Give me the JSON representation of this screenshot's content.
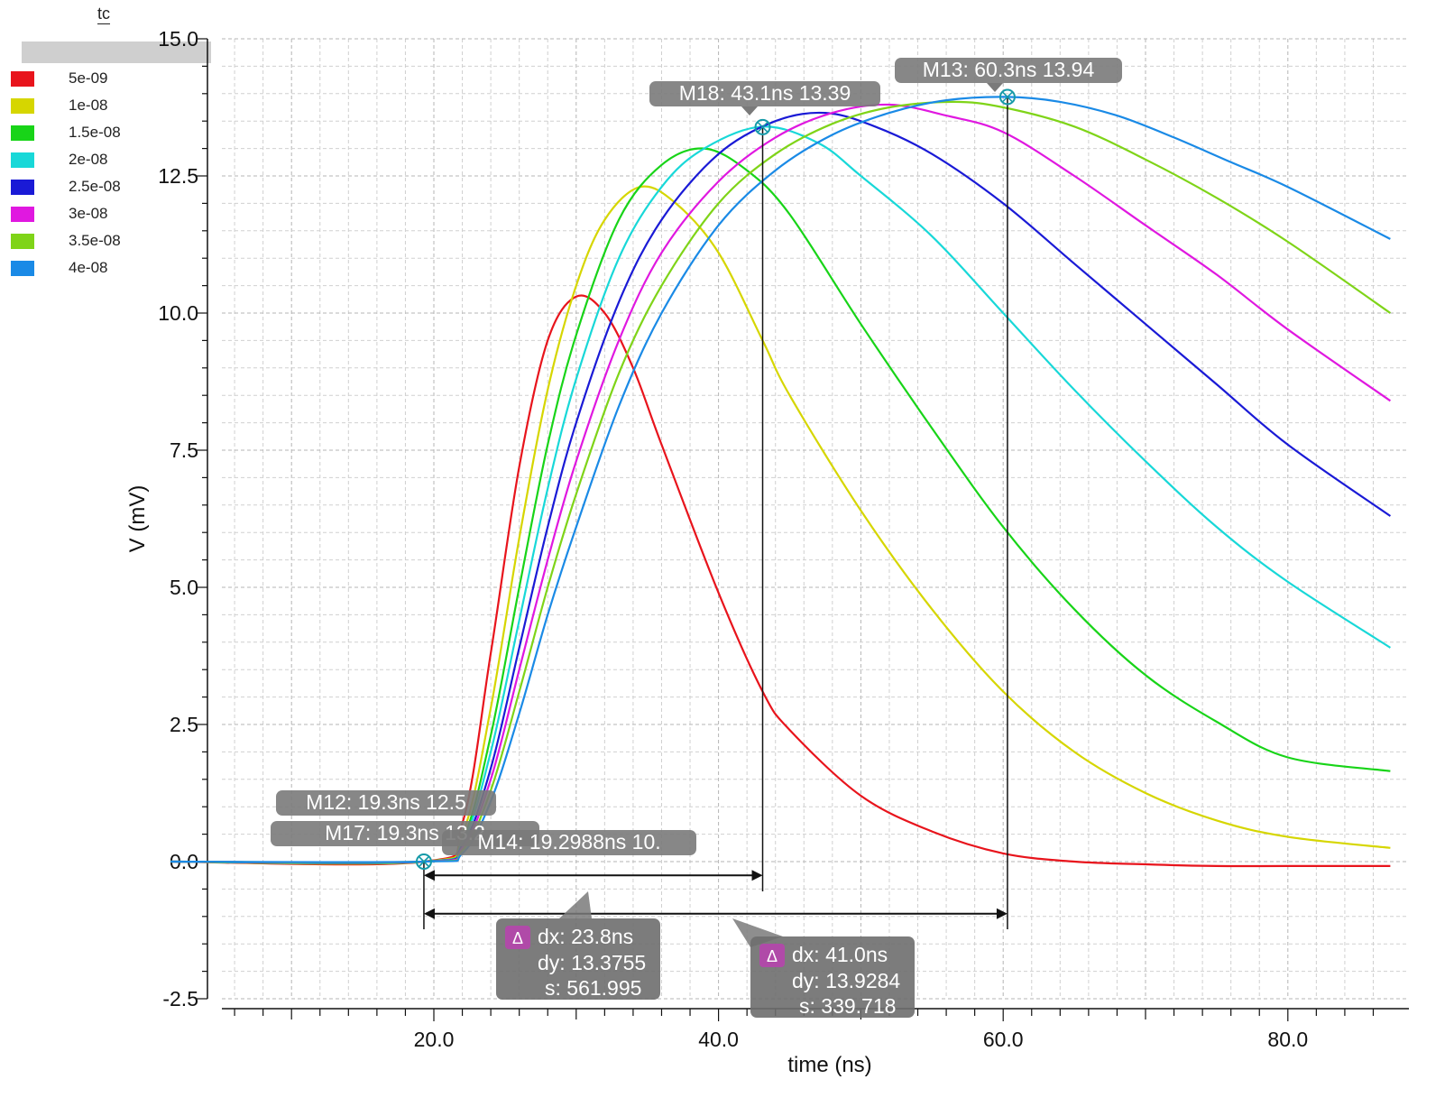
{
  "legend": {
    "title": "tc",
    "items": [
      {
        "label": "5e-09",
        "color": "#e8141c"
      },
      {
        "label": "1e-08",
        "color": "#d6d600"
      },
      {
        "label": "1.5e-08",
        "color": "#18d418"
      },
      {
        "label": "2e-08",
        "color": "#18d8d8"
      },
      {
        "label": "2.5e-08",
        "color": "#1a1ad6"
      },
      {
        "label": "3e-08",
        "color": "#e018e0"
      },
      {
        "label": "3.5e-08",
        "color": "#7fd418"
      },
      {
        "label": "4e-08",
        "color": "#1a8ae6"
      }
    ]
  },
  "chart_data": {
    "type": "line",
    "xlabel": "time (ns)",
    "ylabel": "V (mV)",
    "xlim": [
      1.5,
      87.2
    ],
    "ylim": [
      -2.5,
      15.0
    ],
    "xticks": [
      20.0,
      40.0,
      60.0,
      80.0
    ],
    "xtick_labels": [
      "20.0",
      "40.0",
      "60.0",
      "80.0"
    ],
    "yticks": [
      -2.5,
      0.0,
      2.5,
      5.0,
      7.5,
      10.0,
      12.5,
      15.0
    ],
    "ytick_labels": [
      "-2.5",
      "0.0",
      "2.5",
      "5.0",
      "7.5",
      "10.0",
      "12.5",
      "15.0"
    ],
    "grid": true,
    "legend_position": "left",
    "series": [
      {
        "name": "5e-09",
        "color": "#e8141c",
        "peak": [
          30.0,
          10.3
        ],
        "x": [
          1.5,
          19.3,
          22,
          24,
          26,
          28,
          30,
          32,
          34,
          36,
          40,
          43.1,
          45,
          50,
          55,
          60,
          65,
          70,
          75,
          80,
          87.2
        ],
        "y": [
          0.0,
          0.0,
          0.7,
          3.8,
          7.2,
          9.5,
          10.3,
          10.0,
          9.0,
          7.6,
          4.9,
          3.1,
          2.4,
          1.2,
          0.55,
          0.15,
          0.0,
          -0.05,
          -0.08,
          -0.08,
          -0.08
        ]
      },
      {
        "name": "1e-08",
        "color": "#d6d600",
        "peak": [
          34.5,
          12.3
        ],
        "x": [
          1.5,
          19.3,
          22,
          24,
          26,
          28,
          30,
          32,
          34.5,
          37,
          40,
          43.1,
          45,
          50,
          55,
          60,
          65,
          70,
          75,
          80,
          87.2
        ],
        "y": [
          0.0,
          0.0,
          0.5,
          2.8,
          5.9,
          8.6,
          10.5,
          11.7,
          12.3,
          12.0,
          11.1,
          9.5,
          8.5,
          6.4,
          4.6,
          3.1,
          2.0,
          1.25,
          0.75,
          0.45,
          0.25
        ]
      },
      {
        "name": "1.5e-08",
        "color": "#18d418",
        "peak": [
          39.0,
          13.0
        ],
        "x": [
          1.5,
          19.3,
          22,
          24,
          26,
          28,
          30,
          33,
          36,
          39,
          42,
          45,
          50,
          55,
          60,
          65,
          70,
          75,
          80,
          87.2
        ],
        "y": [
          0.0,
          0.0,
          0.4,
          2.3,
          5.0,
          7.6,
          9.6,
          11.7,
          12.7,
          13.0,
          12.6,
          11.8,
          9.8,
          7.9,
          6.1,
          4.6,
          3.4,
          2.55,
          1.9,
          1.65
        ]
      },
      {
        "name": "2e-08",
        "color": "#18d8d8",
        "peak": [
          43.1,
          13.4
        ],
        "x": [
          1.5,
          19.3,
          22,
          24,
          26,
          28,
          30,
          33,
          36,
          39,
          43.1,
          47,
          50,
          55,
          60,
          65,
          70,
          75,
          80,
          87.2
        ],
        "y": [
          0.0,
          0.0,
          0.35,
          2.0,
          4.4,
          6.8,
          8.8,
          11.0,
          12.3,
          13.0,
          13.4,
          13.1,
          12.5,
          11.4,
          10.0,
          8.6,
          7.3,
          6.1,
          5.1,
          3.9
        ]
      },
      {
        "name": "2.5e-08",
        "color": "#1a1ad6",
        "peak": [
          47.5,
          13.65
        ],
        "x": [
          1.5,
          19.3,
          22,
          24,
          26,
          28,
          30,
          33,
          36,
          40,
          44,
          47.5,
          51,
          55,
          60,
          65,
          70,
          75,
          80,
          87.2
        ],
        "y": [
          0.0,
          0.0,
          0.3,
          1.7,
          3.9,
          6.1,
          8.0,
          10.2,
          11.7,
          12.9,
          13.5,
          13.65,
          13.4,
          12.9,
          12.0,
          10.9,
          9.8,
          8.7,
          7.6,
          6.3
        ]
      },
      {
        "name": "3e-08",
        "color": "#e018e0",
        "peak": [
          52.0,
          13.8
        ],
        "x": [
          1.5,
          19.3,
          22,
          24,
          26,
          28,
          30,
          33,
          36,
          40,
          44,
          48,
          52,
          56,
          60,
          65,
          70,
          75,
          80,
          87.2
        ],
        "y": [
          0.0,
          0.0,
          0.25,
          1.5,
          3.5,
          5.5,
          7.3,
          9.5,
          11.1,
          12.4,
          13.2,
          13.65,
          13.8,
          13.6,
          13.3,
          12.5,
          11.6,
          10.7,
          9.7,
          8.4
        ]
      },
      {
        "name": "3.5e-08",
        "color": "#7fd418",
        "peak": [
          56.5,
          13.85
        ],
        "x": [
          1.5,
          19.3,
          22,
          24,
          26,
          28,
          30,
          33,
          36,
          40,
          44,
          48,
          52,
          56.5,
          60,
          65,
          70,
          75,
          80,
          87.2
        ],
        "y": [
          0.0,
          0.0,
          0.2,
          1.3,
          3.1,
          5.0,
          6.7,
          8.9,
          10.5,
          12.0,
          12.9,
          13.45,
          13.75,
          13.85,
          13.75,
          13.4,
          12.8,
          12.1,
          11.3,
          10.0
        ]
      },
      {
        "name": "4e-08",
        "color": "#1a8ae6",
        "peak": [
          60.3,
          13.94
        ],
        "x": [
          1.5,
          19.3,
          22,
          24,
          26,
          28,
          30,
          33,
          36,
          40,
          44,
          48,
          52,
          56,
          60.3,
          64,
          68,
          72,
          76,
          80,
          87.2
        ],
        "y": [
          0.0,
          0.0,
          0.15,
          1.1,
          2.7,
          4.5,
          6.1,
          8.3,
          10.0,
          11.6,
          12.6,
          13.25,
          13.65,
          13.88,
          13.94,
          13.85,
          13.6,
          13.2,
          12.75,
          12.3,
          11.35
        ]
      }
    ],
    "markers": [
      {
        "id": "M12",
        "label": "M12: 19.3ns 12.5",
        "x": 19.3,
        "y": 0.0
      },
      {
        "id": "M17",
        "label": "M17: 19.3ns 13.2",
        "x": 19.3,
        "y": 0.0
      },
      {
        "id": "M14",
        "label": "M14: 19.2988ns 10.",
        "x": 19.3,
        "y": 0.0
      },
      {
        "id": "M18",
        "label": "M18: 43.1ns 13.39",
        "x": 43.1,
        "y": 13.39
      },
      {
        "id": "M13",
        "label": "M13: 60.3ns 13.94",
        "x": 60.3,
        "y": 13.94
      }
    ],
    "deltas": [
      {
        "from_x": 19.3,
        "to_x": 43.1,
        "arrow_y": -0.25,
        "dx": "dx: 23.8ns",
        "dy": "dy: 13.3755",
        "s": "s: 561.995"
      },
      {
        "from_x": 19.3,
        "to_x": 60.3,
        "arrow_y": -0.95,
        "dx": "dx: 41.0ns",
        "dy": "dy: 13.9284",
        "s": "s: 339.718"
      }
    ]
  }
}
